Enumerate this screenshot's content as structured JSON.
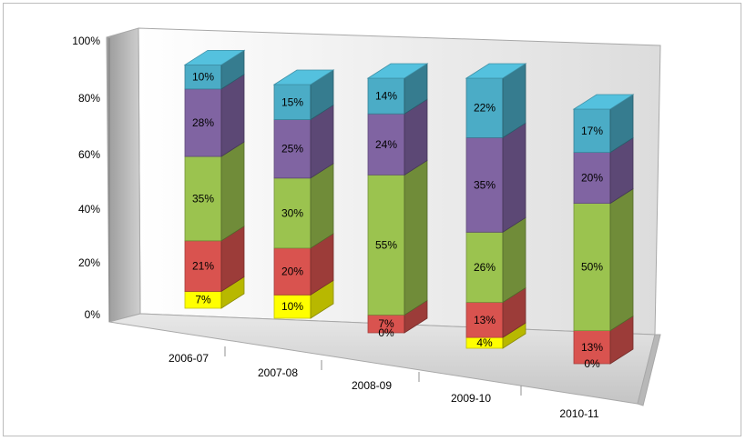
{
  "chart_data": {
    "type": "bar",
    "stacked": true,
    "percent": true,
    "three_d": true,
    "title": "",
    "xlabel": "",
    "ylabel": "",
    "ylim": [
      0,
      100
    ],
    "y_ticks": [
      "0%",
      "20%",
      "40%",
      "60%",
      "80%",
      "100%"
    ],
    "grid": false,
    "legend": "none",
    "categories": [
      "2006-07",
      "2007-08",
      "2008-09",
      "2009-10",
      "2010-11"
    ],
    "series": [
      {
        "color": "#ffff00",
        "values": [
          7,
          10,
          0,
          4,
          0
        ],
        "labels": [
          "7%",
          "10%",
          "0%",
          "4%",
          "0%"
        ]
      },
      {
        "color": "#d9534f",
        "values": [
          21,
          20,
          7,
          13,
          13
        ],
        "labels": [
          "21%",
          "20%",
          "7%",
          "13%",
          "13%"
        ]
      },
      {
        "color": "#9bc34f",
        "values": [
          35,
          30,
          55,
          26,
          50
        ],
        "labels": [
          "35%",
          "30%",
          "55%",
          "26%",
          "50%"
        ]
      },
      {
        "color": "#8064a2",
        "values": [
          28,
          25,
          24,
          35,
          20
        ],
        "labels": [
          "28%",
          "25%",
          "24%",
          "35%",
          "20%"
        ]
      },
      {
        "color": "#4bacc6",
        "values": [
          10,
          15,
          14,
          22,
          17
        ],
        "labels": [
          "10%",
          "15%",
          "14%",
          "22%",
          "17%"
        ]
      }
    ]
  }
}
